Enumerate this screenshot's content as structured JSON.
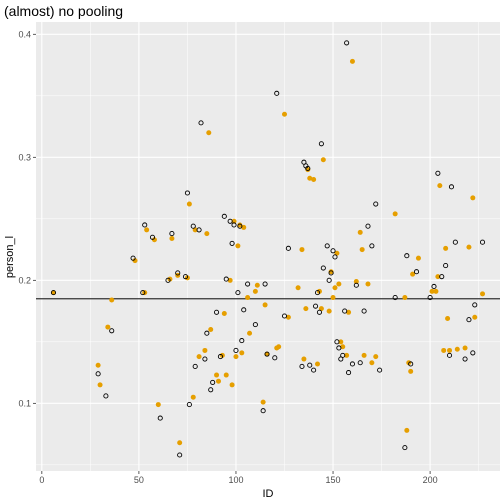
{
  "chart_data": {
    "type": "scatter",
    "title": "(almost) no pooling",
    "xlabel": "ID",
    "ylabel": "person_l",
    "xlim": [
      -3,
      236
    ],
    "ylim": [
      0.045,
      0.41
    ],
    "x_ticks": [
      0,
      50,
      100,
      150,
      200
    ],
    "y_ticks": [
      0.1,
      0.2,
      0.3,
      0.4
    ],
    "grid": true,
    "hline": 0.185,
    "colors": {
      "panel": "#ebebeb",
      "grid_major": "#ffffff",
      "orange_fill": "#e69f00",
      "black_outline": "#000000",
      "hline": "#333333"
    },
    "series": [
      {
        "marker": "filled-circle",
        "color": "#e69f00",
        "x": [
          6,
          29,
          30,
          34,
          36,
          48,
          53,
          54,
          58,
          60,
          66,
          67,
          70,
          71,
          75,
          76,
          78,
          79,
          81,
          84,
          85,
          86,
          87,
          90,
          91,
          93,
          94,
          95,
          97,
          98,
          99,
          100,
          101,
          102,
          103,
          104,
          106,
          107,
          110,
          111,
          114,
          115,
          116,
          121,
          122,
          125,
          127,
          132,
          134,
          135,
          136,
          137,
          138,
          140,
          142,
          143,
          144,
          145,
          148,
          149,
          150,
          151,
          152,
          153,
          154,
          155,
          157,
          158,
          160,
          162,
          164,
          165,
          166,
          168,
          170,
          172,
          182,
          187,
          188,
          189,
          190,
          191,
          194,
          201,
          203,
          204,
          205,
          207,
          208,
          209,
          210,
          214,
          218,
          220,
          222,
          223,
          227
        ],
        "y": [
          0.19,
          0.131,
          0.115,
          0.162,
          0.184,
          0.216,
          0.19,
          0.241,
          0.233,
          0.099,
          0.201,
          0.234,
          0.204,
          0.068,
          0.202,
          0.262,
          0.105,
          0.241,
          0.138,
          0.143,
          0.238,
          0.32,
          0.16,
          0.123,
          0.118,
          0.139,
          0.173,
          0.123,
          0.2,
          0.115,
          0.248,
          0.138,
          0.228,
          0.245,
          0.141,
          0.243,
          0.186,
          0.157,
          0.191,
          0.196,
          0.101,
          0.18,
          0.14,
          0.145,
          0.146,
          0.335,
          0.17,
          0.194,
          0.225,
          0.136,
          0.177,
          0.29,
          0.283,
          0.282,
          0.132,
          0.191,
          0.177,
          0.298,
          0.175,
          0.207,
          0.186,
          0.194,
          0.222,
          0.197,
          0.15,
          0.146,
          0.139,
          0.174,
          0.378,
          0.199,
          0.239,
          0.225,
          0.139,
          0.197,
          0.133,
          0.138,
          0.254,
          0.186,
          0.078,
          0.133,
          0.126,
          0.205,
          0.218,
          0.191,
          0.191,
          0.203,
          0.277,
          0.143,
          0.226,
          0.169,
          0.143,
          0.144,
          0.145,
          0.227,
          0.267,
          0.17,
          0.189
        ]
      },
      {
        "marker": "open-circle",
        "color": "#000000",
        "x": [
          6,
          29,
          33,
          36,
          47,
          52,
          53,
          57,
          61,
          65,
          67,
          70,
          71,
          74,
          75,
          76,
          78,
          79,
          81,
          82,
          84,
          85,
          87,
          88,
          90,
          92,
          94,
          95,
          97,
          98,
          99,
          100,
          101,
          102,
          103,
          104,
          106,
          110,
          114,
          115,
          116,
          120,
          121,
          125,
          127,
          134,
          135,
          136,
          137,
          138,
          140,
          141,
          142,
          143,
          144,
          145,
          147,
          148,
          149,
          150,
          151,
          152,
          153,
          154,
          155,
          156,
          157,
          158,
          160,
          162,
          164,
          166,
          168,
          170,
          172,
          174,
          182,
          187,
          188,
          190,
          193,
          200,
          202,
          204,
          206,
          208,
          210,
          211,
          213,
          218,
          220,
          222,
          223,
          227
        ],
        "y": [
          0.19,
          0.124,
          0.106,
          0.159,
          0.218,
          0.19,
          0.245,
          0.235,
          0.088,
          0.2,
          0.238,
          0.206,
          0.058,
          0.203,
          0.271,
          0.099,
          0.244,
          0.13,
          0.241,
          0.328,
          0.136,
          0.157,
          0.111,
          0.117,
          0.174,
          0.138,
          0.252,
          0.201,
          0.248,
          0.23,
          0.245,
          0.143,
          0.19,
          0.244,
          0.151,
          0.176,
          0.197,
          0.164,
          0.094,
          0.197,
          0.14,
          0.137,
          0.352,
          0.171,
          0.226,
          0.13,
          0.296,
          0.293,
          0.291,
          0.131,
          0.127,
          0.179,
          0.19,
          0.174,
          0.311,
          0.21,
          0.228,
          0.2,
          0.206,
          0.224,
          0.219,
          0.15,
          0.145,
          0.136,
          0.139,
          0.175,
          0.393,
          0.125,
          0.132,
          0.196,
          0.133,
          0.175,
          0.244,
          0.228,
          0.262,
          0.127,
          0.186,
          0.064,
          0.22,
          0.132,
          0.207,
          0.186,
          0.195,
          0.287,
          0.203,
          0.212,
          0.139,
          0.276,
          0.231,
          0.136,
          0.168,
          0.141,
          0.18,
          0.231
        ]
      }
    ]
  }
}
